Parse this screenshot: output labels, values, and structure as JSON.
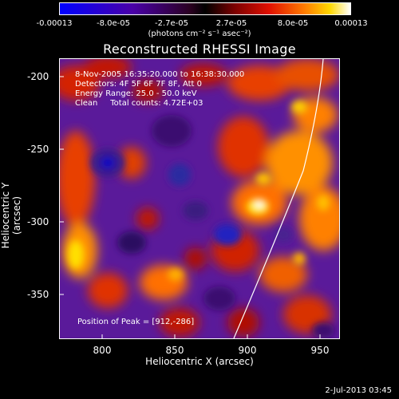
{
  "colorbar": {
    "tick_labels": [
      "-0.00013",
      "-8.0e-05",
      "-2.7e-05",
      "2.7e-05",
      "8.0e-05",
      "0.00013"
    ],
    "units": "(photons cm⁻² s⁻¹ asec⁻²)"
  },
  "title": "Reconstructed RHESSI Image",
  "annotations": {
    "time_range": "8-Nov-2005 16:35:20.000 to 16:38:30.000",
    "detectors": "Detectors: 4F 5F 6F 7F 8F, Att 0",
    "energy_range": "Energy Range: 25.0 - 50.0 keV",
    "clean_counts": "Clean     Total counts: 4.72E+03",
    "peak": "Position of Peak = [912,-286]"
  },
  "axes": {
    "xlabel": "Heliocentric X (arcsec)",
    "ylabel": "Heliocentric Y (arcsec)",
    "x_tick_labels": [
      "800",
      "850",
      "900",
      "950"
    ],
    "y_tick_labels": [
      "-200",
      "-250",
      "-300",
      "-350"
    ],
    "x_range": [
      770,
      963
    ],
    "y_range": [
      -380,
      -187
    ]
  },
  "timestamp": "2-Jul-2013 03:45",
  "colors": {
    "frame": "#ffffff",
    "background": "#000000"
  }
}
